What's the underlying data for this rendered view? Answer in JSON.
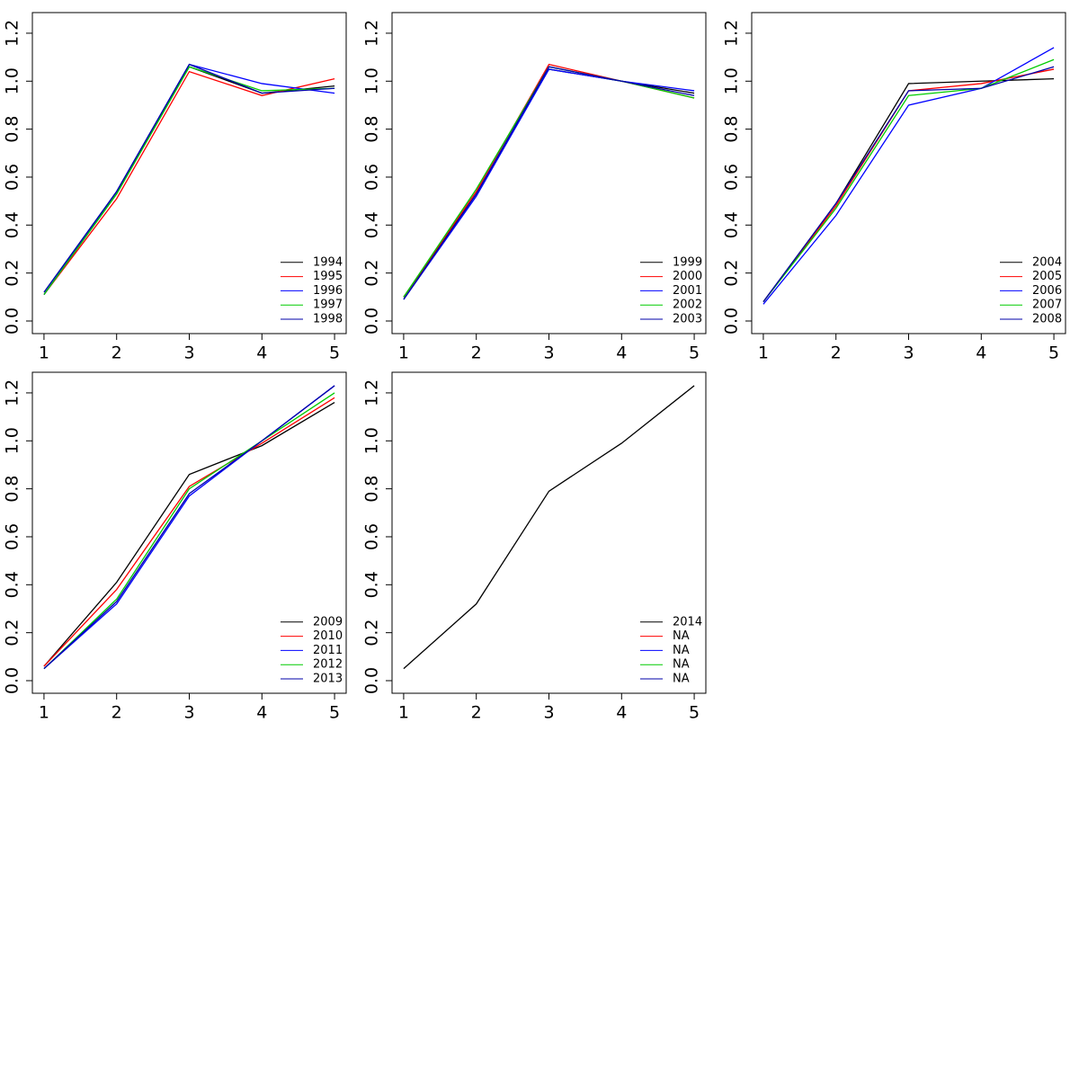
{
  "chart_data": [
    {
      "type": "line",
      "x": [
        1,
        2,
        3,
        4,
        5
      ],
      "xlim": [
        0.84,
        5.16
      ],
      "xticks": [
        1,
        2,
        3,
        4,
        5
      ],
      "ylim": [
        -0.0525,
        1.286
      ],
      "yticks": [
        {
          "value": 0,
          "label": "0.0"
        },
        0.2,
        0.4,
        0.6,
        0.8,
        {
          "value": 1,
          "label": "1.0"
        },
        1.2
      ],
      "legend": "bottomright",
      "series": [
        {
          "name": "1994",
          "color": "#000000",
          "values": [
            0.11,
            0.53,
            1.06,
            0.95,
            0.98
          ]
        },
        {
          "name": "1995",
          "color": "#ff0000",
          "values": [
            0.11,
            0.51,
            1.04,
            0.94,
            1.01
          ]
        },
        {
          "name": "1996",
          "color": "#0000ff",
          "values": [
            0.11,
            0.54,
            1.07,
            0.99,
            0.95
          ]
        },
        {
          "name": "1997",
          "color": "#00cc00",
          "values": [
            0.11,
            0.53,
            1.06,
            0.96,
            0.97
          ]
        },
        {
          "name": "1998",
          "color": "#0000aa",
          "values": [
            0.12,
            0.54,
            1.07,
            0.95,
            0.97
          ]
        }
      ]
    },
    {
      "type": "line",
      "x": [
        1,
        2,
        3,
        4,
        5
      ],
      "xlim": [
        0.84,
        5.16
      ],
      "xticks": [
        1,
        2,
        3,
        4,
        5
      ],
      "ylim": [
        -0.0525,
        1.286
      ],
      "yticks": [
        {
          "value": 0,
          "label": "0.0"
        },
        0.2,
        0.4,
        0.6,
        0.8,
        {
          "value": 1,
          "label": "1.0"
        },
        1.2
      ],
      "legend": "bottomright",
      "series": [
        {
          "name": "1999",
          "color": "#000000",
          "values": [
            0.1,
            0.53,
            1.05,
            1.0,
            0.95
          ]
        },
        {
          "name": "2000",
          "color": "#ff0000",
          "values": [
            0.1,
            0.54,
            1.07,
            1.0,
            0.93
          ]
        },
        {
          "name": "2001",
          "color": "#0000ff",
          "values": [
            0.09,
            0.52,
            1.05,
            1.0,
            0.96
          ]
        },
        {
          "name": "2002",
          "color": "#00cc00",
          "values": [
            0.1,
            0.55,
            1.06,
            1.0,
            0.93
          ]
        },
        {
          "name": "2003",
          "color": "#0000aa",
          "values": [
            0.09,
            0.53,
            1.06,
            1.0,
            0.94
          ]
        }
      ]
    },
    {
      "type": "line",
      "x": [
        1,
        2,
        3,
        4,
        5
      ],
      "xlim": [
        0.84,
        5.16
      ],
      "xticks": [
        1,
        2,
        3,
        4,
        5
      ],
      "ylim": [
        -0.0525,
        1.286
      ],
      "yticks": [
        {
          "value": 0,
          "label": "0.0"
        },
        0.2,
        0.4,
        0.6,
        0.8,
        {
          "value": 1,
          "label": "1.0"
        },
        1.2
      ],
      "legend": "bottomright",
      "series": [
        {
          "name": "2004",
          "color": "#000000",
          "values": [
            0.08,
            0.49,
            0.99,
            1.0,
            1.01
          ]
        },
        {
          "name": "2005",
          "color": "#ff0000",
          "values": [
            0.08,
            0.48,
            0.96,
            0.99,
            1.05
          ]
        },
        {
          "name": "2006",
          "color": "#0000ff",
          "values": [
            0.07,
            0.44,
            0.9,
            0.97,
            1.14
          ]
        },
        {
          "name": "2007",
          "color": "#00cc00",
          "values": [
            0.08,
            0.47,
            0.94,
            0.97,
            1.09
          ]
        },
        {
          "name": "2008",
          "color": "#0000aa",
          "values": [
            0.08,
            0.49,
            0.96,
            0.97,
            1.06
          ]
        }
      ]
    },
    {
      "type": "line",
      "x": [
        1,
        2,
        3,
        4,
        5
      ],
      "xlim": [
        0.84,
        5.16
      ],
      "xticks": [
        1,
        2,
        3,
        4,
        5
      ],
      "ylim": [
        -0.0525,
        1.286
      ],
      "yticks": [
        {
          "value": 0,
          "label": "0.0"
        },
        0.2,
        0.4,
        0.6,
        0.8,
        {
          "value": 1,
          "label": "1.0"
        },
        1.2
      ],
      "legend": "bottomright",
      "series": [
        {
          "name": "2009",
          "color": "#000000",
          "values": [
            0.06,
            0.41,
            0.86,
            0.98,
            1.16
          ]
        },
        {
          "name": "2010",
          "color": "#ff0000",
          "values": [
            0.06,
            0.38,
            0.81,
            0.99,
            1.18
          ]
        },
        {
          "name": "2011",
          "color": "#0000ff",
          "values": [
            0.05,
            0.32,
            0.77,
            1.0,
            1.23
          ]
        },
        {
          "name": "2012",
          "color": "#00cc00",
          "values": [
            0.05,
            0.34,
            0.8,
            1.0,
            1.2
          ]
        },
        {
          "name": "2013",
          "color": "#0000aa",
          "values": [
            0.05,
            0.33,
            0.78,
            1.0,
            1.23
          ]
        }
      ]
    },
    {
      "type": "line",
      "x": [
        1,
        2,
        3,
        4,
        5
      ],
      "xlim": [
        0.84,
        5.16
      ],
      "xticks": [
        1,
        2,
        3,
        4,
        5
      ],
      "ylim": [
        -0.0525,
        1.286
      ],
      "yticks": [
        {
          "value": 0,
          "label": "0.0"
        },
        0.2,
        0.4,
        0.6,
        0.8,
        {
          "value": 1,
          "label": "1.0"
        },
        1.2
      ],
      "legend": "bottomright",
      "series": [
        {
          "name": "2014",
          "color": "#000000",
          "values": [
            0.05,
            0.32,
            0.79,
            0.99,
            1.23
          ]
        },
        {
          "name": "NA",
          "color": "#ff0000",
          "values": [
            null,
            null,
            null,
            null,
            null
          ]
        },
        {
          "name": "NA",
          "color": "#0000ff",
          "values": [
            null,
            null,
            null,
            null,
            null
          ]
        },
        {
          "name": "NA",
          "color": "#00cc00",
          "values": [
            null,
            null,
            null,
            null,
            null
          ]
        },
        {
          "name": "NA",
          "color": "#0000aa",
          "values": [
            null,
            null,
            null,
            null,
            null
          ]
        }
      ]
    }
  ]
}
